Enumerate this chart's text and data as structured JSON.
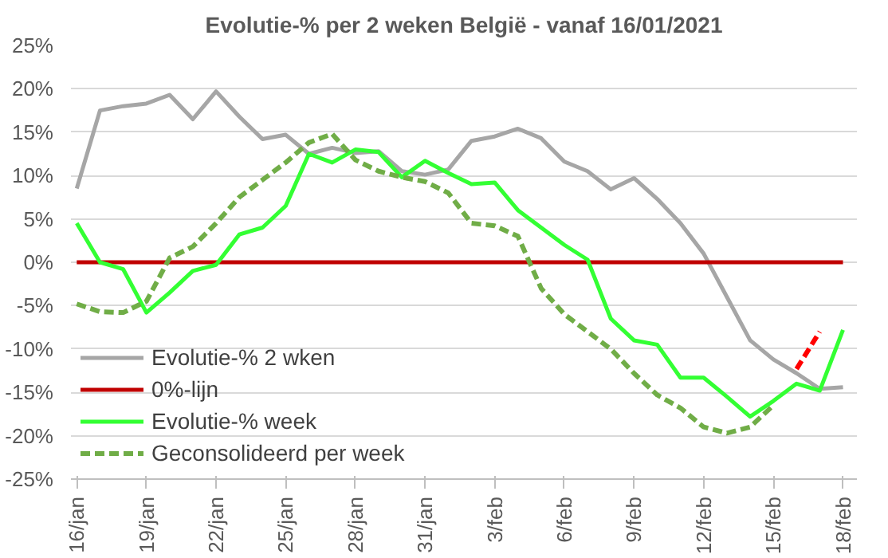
{
  "chart_data": {
    "type": "line",
    "title": "Evolutie-% per 2 weken België - vanaf 16/01/2021",
    "categories": [
      "16/jan",
      null,
      null,
      "19/jan",
      null,
      null,
      "22/jan",
      null,
      null,
      "25/jan",
      null,
      null,
      "28/jan",
      null,
      null,
      "31/jan",
      null,
      null,
      "3/feb",
      null,
      null,
      "6/feb",
      null,
      null,
      "9/feb",
      null,
      null,
      "12/feb",
      null,
      null,
      "15/feb",
      null,
      null,
      "18/feb"
    ],
    "ylim": [
      -25,
      25
    ],
    "yticks": [
      {
        "value": -25,
        "label": "-25%"
      },
      {
        "value": -20,
        "label": "-20%"
      },
      {
        "value": -15,
        "label": "-15%"
      },
      {
        "value": -10,
        "label": "-10%"
      },
      {
        "value": -5,
        "label": "-5%"
      },
      {
        "value": 0,
        "label": "0%"
      },
      {
        "value": 5,
        "label": "5%"
      },
      {
        "value": 10,
        "label": "10%"
      },
      {
        "value": 15,
        "label": "15%"
      },
      {
        "value": 20,
        "label": "20%"
      },
      {
        "value": 25,
        "label": "25%"
      }
    ],
    "grid": "y",
    "legend": "bottom left",
    "series": [
      {
        "name": "Evolutie-% 2 wken",
        "color": "#a6a6a6",
        "values": [
          8.5,
          17.5,
          18.0,
          18.3,
          19.3,
          16.5,
          19.7,
          16.8,
          14.2,
          14.7,
          12.5,
          13.2,
          12.6,
          12.8,
          10.5,
          10.1,
          10.7,
          14.0,
          14.5,
          15.4,
          14.3,
          11.6,
          10.5,
          8.4,
          9.7,
          7.3,
          4.5,
          1.0,
          -4.0,
          -9.0,
          -11.2,
          -12.8,
          -14.6,
          -14.4
        ]
      },
      {
        "name": "0%-lijn",
        "color": "#c00000",
        "values": [
          0,
          0,
          0,
          0,
          0,
          0,
          0,
          0,
          0,
          0,
          0,
          0,
          0,
          0,
          0,
          0,
          0,
          0,
          0,
          0,
          0,
          0,
          0,
          0,
          0,
          0,
          0,
          0,
          0,
          0,
          0,
          0,
          0,
          0
        ]
      },
      {
        "name": "Evolutie-% week",
        "color": "#33ff33",
        "values": [
          4.5,
          0,
          -0.8,
          -5.8,
          -3.5,
          -1.0,
          -0.3,
          3.2,
          4.0,
          6.5,
          12.5,
          11.5,
          13.0,
          12.7,
          9.8,
          11.7,
          10.3,
          9.0,
          9.2,
          6.0,
          4.0,
          2.0,
          0.3,
          -6.5,
          -9.0,
          -9.5,
          -13.3,
          -13.3,
          -15.5,
          -17.8,
          -16.0,
          -14.0,
          -14.8,
          -7.8
        ]
      },
      {
        "name": "Geconsolideerd per week",
        "color": "#70ad47",
        "line_style": "dashed",
        "values": [
          -4.8,
          -5.7,
          -5.8,
          -4.5,
          0.5,
          1.8,
          4.5,
          7.5,
          9.5,
          11.5,
          13.8,
          14.8,
          11.8,
          10.5,
          9.8,
          9.3,
          8.0,
          4.5,
          4.2,
          3.0,
          -3.0,
          -6.0,
          -8.0,
          -10.0,
          -12.8,
          -15.3,
          -16.8,
          -19.0,
          -19.7,
          -19.0,
          -16.5,
          null,
          null,
          null
        ]
      },
      {
        "color": "#ff0000",
        "line_style": "dashed",
        "values": [
          null,
          null,
          null,
          null,
          null,
          null,
          null,
          null,
          null,
          null,
          null,
          null,
          null,
          null,
          null,
          null,
          null,
          null,
          null,
          null,
          null,
          null,
          null,
          null,
          null,
          null,
          null,
          null,
          null,
          null,
          null,
          -12.3,
          -8.0,
          null
        ]
      }
    ]
  }
}
